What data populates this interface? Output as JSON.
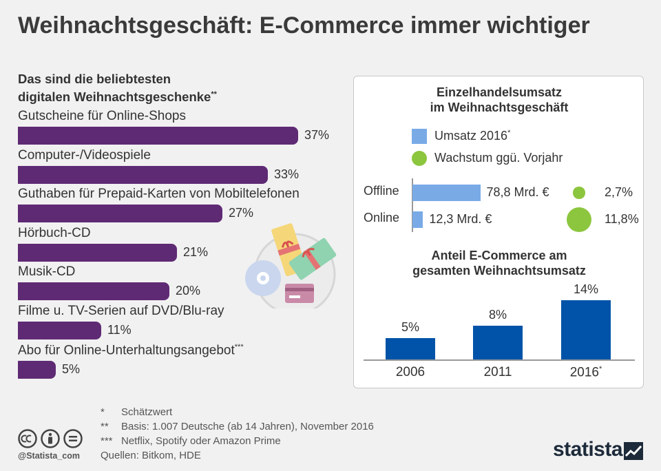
{
  "title": "Weihnachtsgeschäft: E-Commerce immer wichtiger",
  "gifts": {
    "title_line1": "Das sind die beliebtesten",
    "title_line2": "digitalen Weihnachtsgeschenke",
    "title_mark": "**"
  },
  "sales_panel": {
    "title_line1": "Einzelhandelsumsatz",
    "title_line2": "im Weihnachtsgeschäft",
    "legend_sales": "Umsatz 2016",
    "legend_sales_mark": "*",
    "legend_growth": "Wachstum ggü. Vorjahr"
  },
  "share_panel": {
    "title_line1": "Anteil E-Commerce am",
    "title_line2": "gesamten Weihnachtsumsatz"
  },
  "footnotes": [
    {
      "mark": "*",
      "text": "Schätzwert"
    },
    {
      "mark": "**",
      "text": "Basis: 1.007 Deutsche (ab 14 Jahren), November 2016"
    },
    {
      "mark": "***",
      "text": "Netflix, Spotify oder Amazon Prime"
    },
    {
      "mark": "",
      "text": "Quellen: Bitkom, HDE"
    }
  ],
  "handle": "@Statista_com",
  "logo": "statista",
  "colors": {
    "gift_bars": "#5f2a74",
    "sales_bars": "#79aae6",
    "growth_dots": "#8cc63e",
    "share_bars": "#0053a8",
    "background": "#f1f1f1"
  },
  "chart_data": [
    {
      "type": "bar",
      "orientation": "horizontal",
      "title": "Das sind die beliebtesten digitalen Weihnachtsgeschenke**",
      "categories": [
        "Gutscheine für Online-Shops",
        "Computer-/Videospiele",
        "Guthaben für Prepaid-Karten von Mobiltelefonen",
        "Hörbuch-CD",
        "Musik-CD",
        "Filme u. TV-Serien auf DVD/Blu-ray",
        "Abo für Online-Unterhaltungsangebot***"
      ],
      "values": [
        37,
        33,
        27,
        21,
        20,
        11,
        5
      ],
      "labels": [
        "37%",
        "33%",
        "27%",
        "21%",
        "20%",
        "11%",
        "5%"
      ],
      "unit": "%"
    },
    {
      "type": "bar",
      "orientation": "horizontal",
      "title": "Einzelhandelsumsatz im Weihnachtsgeschäft",
      "categories": [
        "Offline",
        "Online"
      ],
      "series": [
        {
          "name": "Umsatz 2016*",
          "values": [
            78.8,
            12.3
          ],
          "labels": [
            "78,8 Mrd. €",
            "12,3 Mrd. €"
          ]
        },
        {
          "name": "Wachstum ggü. Vorjahr",
          "values": [
            2.7,
            11.8
          ],
          "labels": [
            "2,7%",
            "11,8%"
          ]
        }
      ]
    },
    {
      "type": "bar",
      "orientation": "vertical",
      "title": "Anteil E-Commerce am gesamten Weihnachtsumsatz",
      "categories": [
        "2006",
        "2011",
        "2016"
      ],
      "category_marks": [
        "",
        "",
        "*"
      ],
      "values": [
        5,
        8,
        14
      ],
      "labels": [
        "5%",
        "8%",
        "14%"
      ],
      "unit": "%"
    }
  ]
}
